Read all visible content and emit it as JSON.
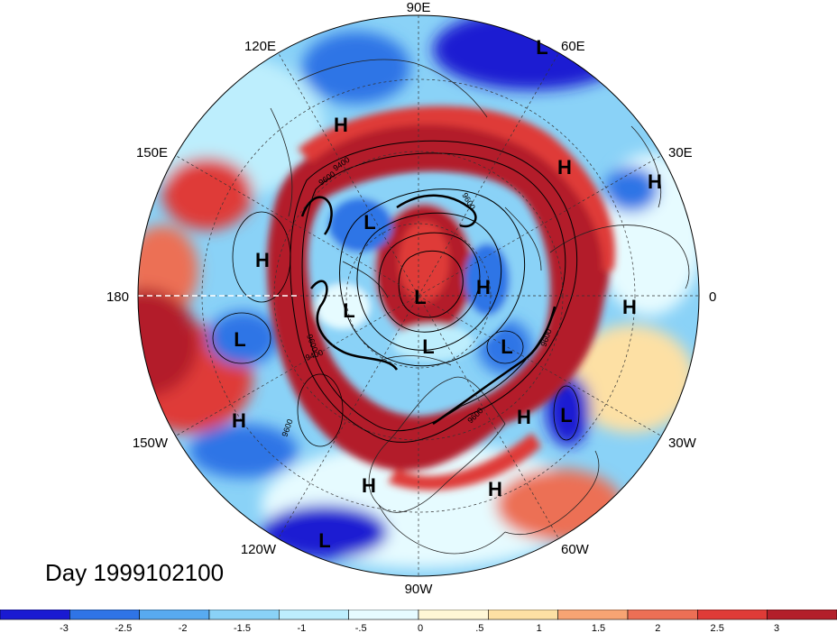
{
  "map": {
    "projection": "north-polar-stereographic",
    "longitude_labels": [
      {
        "id": "90e",
        "text": "90E"
      },
      {
        "id": "60e",
        "text": "60E"
      },
      {
        "id": "30e",
        "text": "30E"
      },
      {
        "id": "0",
        "text": "0"
      },
      {
        "id": "30w",
        "text": "30W"
      },
      {
        "id": "60w",
        "text": "60W"
      },
      {
        "id": "90w",
        "text": "90W"
      },
      {
        "id": "120w",
        "text": "120W"
      },
      {
        "id": "150w",
        "text": "150W"
      },
      {
        "id": "180",
        "text": "180"
      },
      {
        "id": "150e",
        "text": "150E"
      },
      {
        "id": "120e",
        "text": "120E"
      }
    ],
    "pressure_centers": [
      "L",
      "H",
      "H",
      "H",
      "L",
      "H",
      "L",
      "H",
      "L",
      "L",
      "L",
      "H",
      "L",
      "H",
      "H",
      "L",
      "H",
      "H",
      "L"
    ],
    "contour_labels": [
      "9600",
      "9400",
      "9600",
      "9400",
      "9600",
      "9600",
      "9600",
      "9600"
    ],
    "colors": {
      "deep_blue": "#1a1ad2",
      "blue": "#2f74e6",
      "light_blue": "#58aaf0",
      "sky": "#8ad2f7",
      "pale_cyan": "#bdeefd",
      "pale": "#e6fbff",
      "cream": "#fff7d6",
      "sand": "#fde0a4",
      "orange": "#f7a473",
      "salmon": "#ec6f55",
      "red": "#df3b37",
      "dark_red": "#b31f2a"
    }
  },
  "title": {
    "day_label": "Day 1999102100"
  },
  "colorbar": {
    "tick_labels": [
      "-3",
      "-2.5",
      "-2",
      "-1.5",
      "-1",
      "-.5",
      "0",
      ".5",
      "1",
      "1.5",
      "2",
      "2.5",
      "3"
    ],
    "colors": [
      "#1a1ad2",
      "#2f74e6",
      "#58aaf0",
      "#8ad2f7",
      "#bdeefd",
      "#e6fbff",
      "#fff7d6",
      "#fde0a4",
      "#f7a473",
      "#ec6f55",
      "#df3b37",
      "#b31f2a"
    ]
  }
}
